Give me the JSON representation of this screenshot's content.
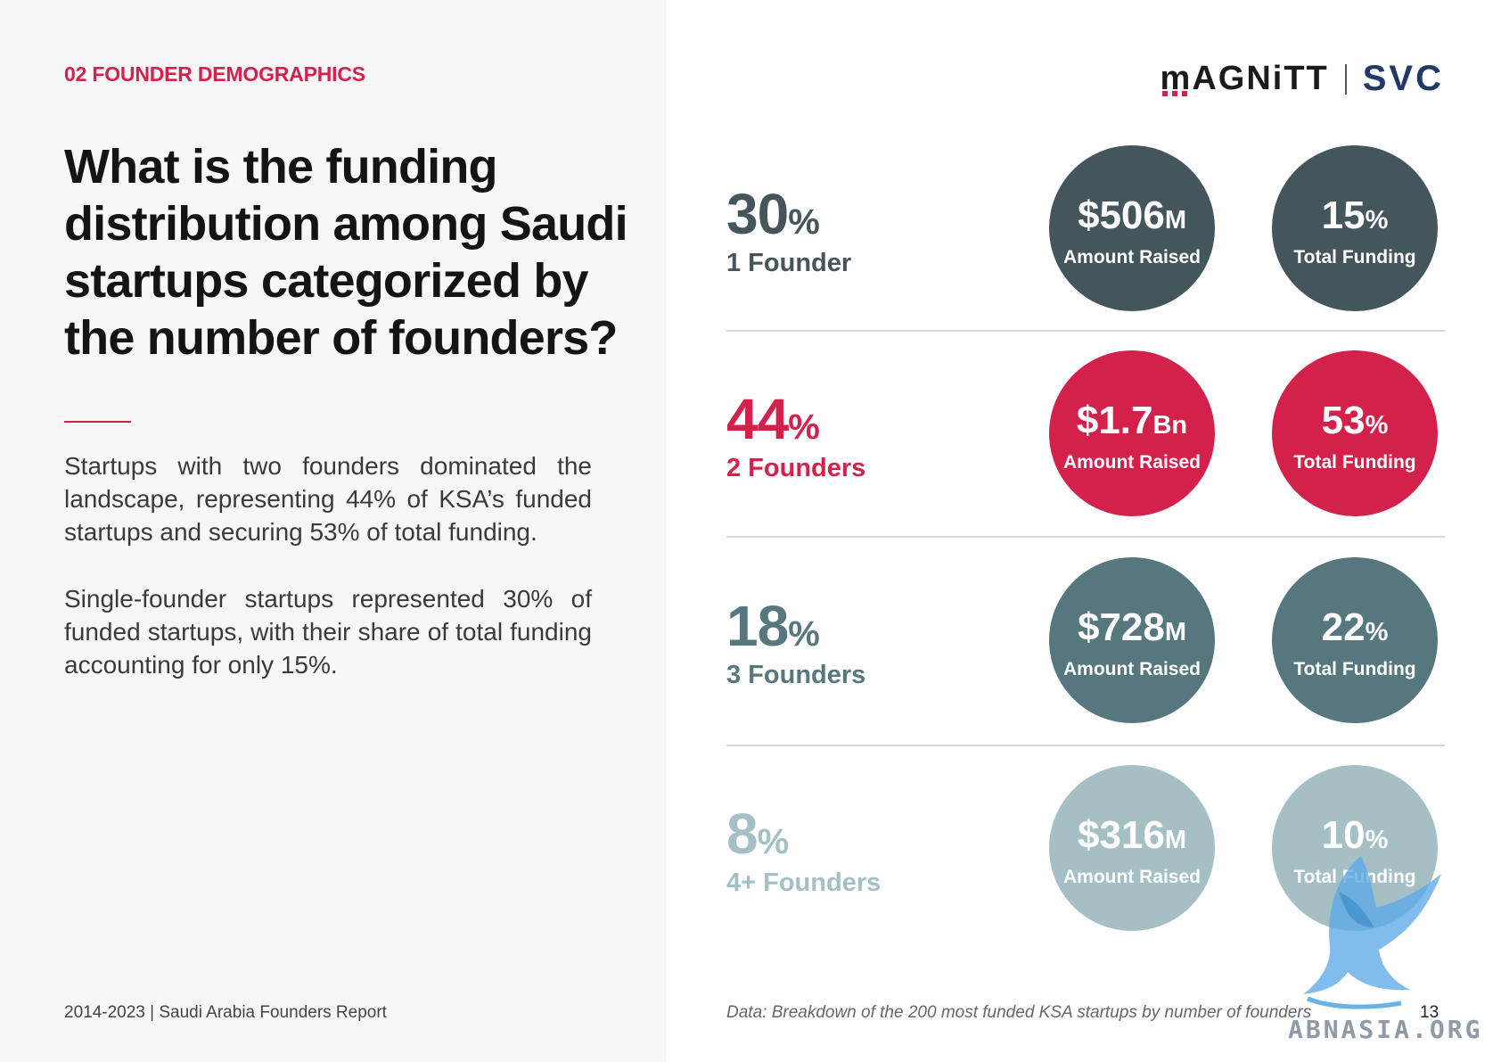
{
  "section_label": "02 FOUNDER DEMOGRAPHICS",
  "headline": "What is the funding distribution among Saudi startups categorized by the number of founders?",
  "paragraphs": [
    "Startups with two founders dominated the landscape, representing 44% of KSA’s funded startups and securing 53% of total funding.",
    "Single-founder startups represented 30% of funded startups, with their share of total funding accounting for only 15%."
  ],
  "footer_left": "2014-2023 | Saudi Arabia Founders Report",
  "logos": {
    "magnitt": "mAGNiTT",
    "svc": "SVC"
  },
  "rows": [
    {
      "share_value": "30",
      "share_unit": "%",
      "label": "1 Founder",
      "amount_value": "$506",
      "amount_unit": "M",
      "amount_caption": "Amount Raised",
      "funding_value": "15",
      "funding_unit": "%",
      "funding_caption": "Total Funding",
      "color": "#44555c"
    },
    {
      "share_value": "44",
      "share_unit": "%",
      "label": "2 Founders",
      "amount_value": "$1.7",
      "amount_unit": "Bn",
      "amount_caption": "Amount Raised",
      "funding_value": "53",
      "funding_unit": "%",
      "funding_caption": "Total Funding",
      "color": "#d3214b"
    },
    {
      "share_value": "18",
      "share_unit": "%",
      "label": "3 Founders",
      "amount_value": "$728",
      "amount_unit": "M",
      "amount_caption": "Amount Raised",
      "funding_value": "22",
      "funding_unit": "%",
      "funding_caption": "Total Funding",
      "color": "#56777e"
    },
    {
      "share_value": "8",
      "share_unit": "%",
      "label": "4+ Founders",
      "amount_value": "$316",
      "amount_unit": "M",
      "amount_caption": "Amount Raised",
      "funding_value": "10",
      "funding_unit": "%",
      "funding_caption": "Total Funding",
      "color": "#a5c0c5"
    }
  ],
  "source_note": "Data: Breakdown of the 200 most funded KSA startups by number of founders",
  "page_number": "13",
  "watermark": "ABNASIA.ORG"
}
